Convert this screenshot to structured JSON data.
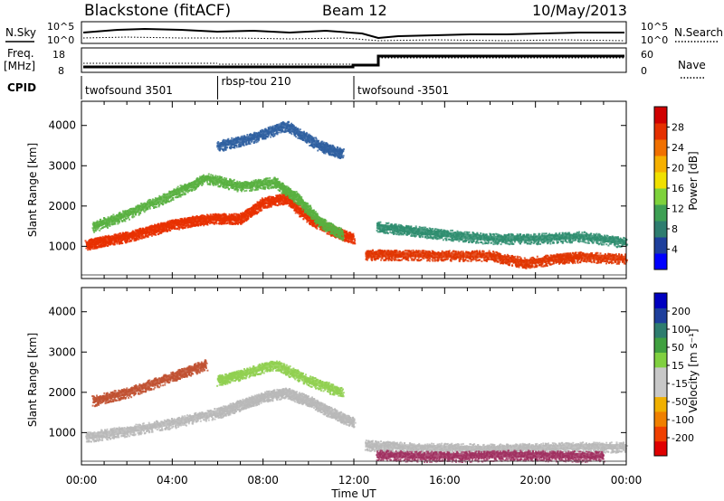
{
  "header": {
    "title": "Blackstone (fitACF)",
    "beam": "Beam 12",
    "date": "10/May/2013"
  },
  "status_panel": {
    "nsky_label": "N.Sky",
    "nsky_ticks": [
      "10^5",
      "10^0"
    ],
    "nsearch_label": "N.Search",
    "nsearch_ticks": [
      "10^5",
      "10^0"
    ],
    "freq_label_1": "Freq.",
    "freq_label_2": "[MHz]",
    "freq_ticks": [
      "18",
      "8"
    ],
    "nave_label": "Nave",
    "nave_ticks": [
      "60",
      "0"
    ],
    "cpid_label": "CPID",
    "cpid_segments": [
      {
        "label": "twofsound 3501",
        "start": 0,
        "end": 6
      },
      {
        "label": "rbsp-tou 210",
        "start": 6,
        "end": 12
      },
      {
        "label": "twofsound -3501",
        "start": 12,
        "end": 24
      }
    ]
  },
  "chart_data": [
    {
      "type": "heatmap",
      "panel": "power",
      "ylabel": "Slant Range [km]",
      "yticks": [
        "4000",
        "3000",
        "2000",
        "1000"
      ],
      "ylim": [
        200,
        4600
      ],
      "colorbar": {
        "label": "Power [dB]",
        "ticks": [
          "28",
          "24",
          "20",
          "16",
          "12",
          "8",
          "4"
        ],
        "colors": [
          "#0000ff",
          "#1e3f9c",
          "#2e7d6f",
          "#3ea054",
          "#7ed23c",
          "#f0e000",
          "#f5b000",
          "#f07000",
          "#e53000",
          "#d00000"
        ]
      },
      "traces": [
        {
          "x": [
            0.2,
            1,
            2,
            3,
            4,
            5,
            6,
            7,
            8,
            9,
            10,
            11,
            12
          ],
          "y": [
            1050,
            1150,
            1250,
            1400,
            1550,
            1650,
            1700,
            1700,
            2100,
            2200,
            1700,
            1400,
            1200
          ],
          "color": "#e83000"
        },
        {
          "x": [
            0.5,
            2,
            4,
            5.5,
            7,
            8.5,
            9.5,
            10.5,
            11.5
          ],
          "y": [
            1500,
            1800,
            2300,
            2700,
            2500,
            2600,
            2200,
            1600,
            1300
          ],
          "color": "#58b040"
        },
        {
          "x": [
            6,
            7.5,
            9,
            10.5,
            11.5
          ],
          "y": [
            3500,
            3700,
            4000,
            3500,
            3300
          ],
          "color": "#2e5fa0"
        },
        {
          "x": [
            12.5,
            14,
            16,
            18,
            19.5,
            21,
            22,
            24
          ],
          "y": [
            800,
            800,
            780,
            780,
            600,
            700,
            750,
            700
          ],
          "color": "#e03500"
        },
        {
          "x": [
            13,
            14.5,
            16,
            18,
            20,
            22,
            24
          ],
          "y": [
            1500,
            1400,
            1300,
            1200,
            1200,
            1250,
            1100
          ],
          "color": "#2e8d6f"
        }
      ]
    },
    {
      "type": "heatmap",
      "panel": "velocity",
      "ylabel": "Slant Range [km]",
      "xlabel": "Time UT",
      "xticks": [
        "00:00",
        "04:00",
        "08:00",
        "12:00",
        "16:00",
        "20:00",
        "00:00"
      ],
      "yticks": [
        "4000",
        "3000",
        "2000",
        "1000"
      ],
      "ylim": [
        200,
        4600
      ],
      "colorbar": {
        "label": "Velocity [m s⁻¹]",
        "ticks": [
          "200",
          "100",
          "50",
          "15",
          "-15",
          "-50",
          "-100",
          "-200"
        ],
        "colors": [
          "#e00000",
          "#f04000",
          "#f08000",
          "#f0b000",
          "#c8c8c8",
          "#c8c8c8",
          "#80d040",
          "#40a040",
          "#2e7d6f",
          "#1e3f9c",
          "#0000c0"
        ]
      },
      "traces": [
        {
          "x": [
            0.2,
            2,
            4,
            6,
            7,
            8,
            9,
            10,
            11,
            12
          ],
          "y": [
            900,
            1050,
            1250,
            1500,
            1700,
            1900,
            2000,
            1800,
            1500,
            1250
          ],
          "color": "#b8b8b8"
        },
        {
          "x": [
            6,
            7,
            8.5,
            10,
            11.5
          ],
          "y": [
            2300,
            2450,
            2700,
            2300,
            2000
          ],
          "color": "#90d050"
        },
        {
          "x": [
            0.5,
            2,
            4,
            5.5
          ],
          "y": [
            1800,
            2000,
            2400,
            2700
          ],
          "color": "#c05030"
        },
        {
          "x": [
            12.5,
            14,
            16,
            18,
            20,
            22,
            24
          ],
          "y": [
            700,
            650,
            620,
            600,
            620,
            650,
            650
          ],
          "color": "#b8b8b8"
        },
        {
          "x": [
            13,
            15,
            17,
            19,
            21,
            23
          ],
          "y": [
            450,
            420,
            420,
            450,
            430,
            420
          ],
          "color": "#a03060"
        }
      ]
    }
  ]
}
